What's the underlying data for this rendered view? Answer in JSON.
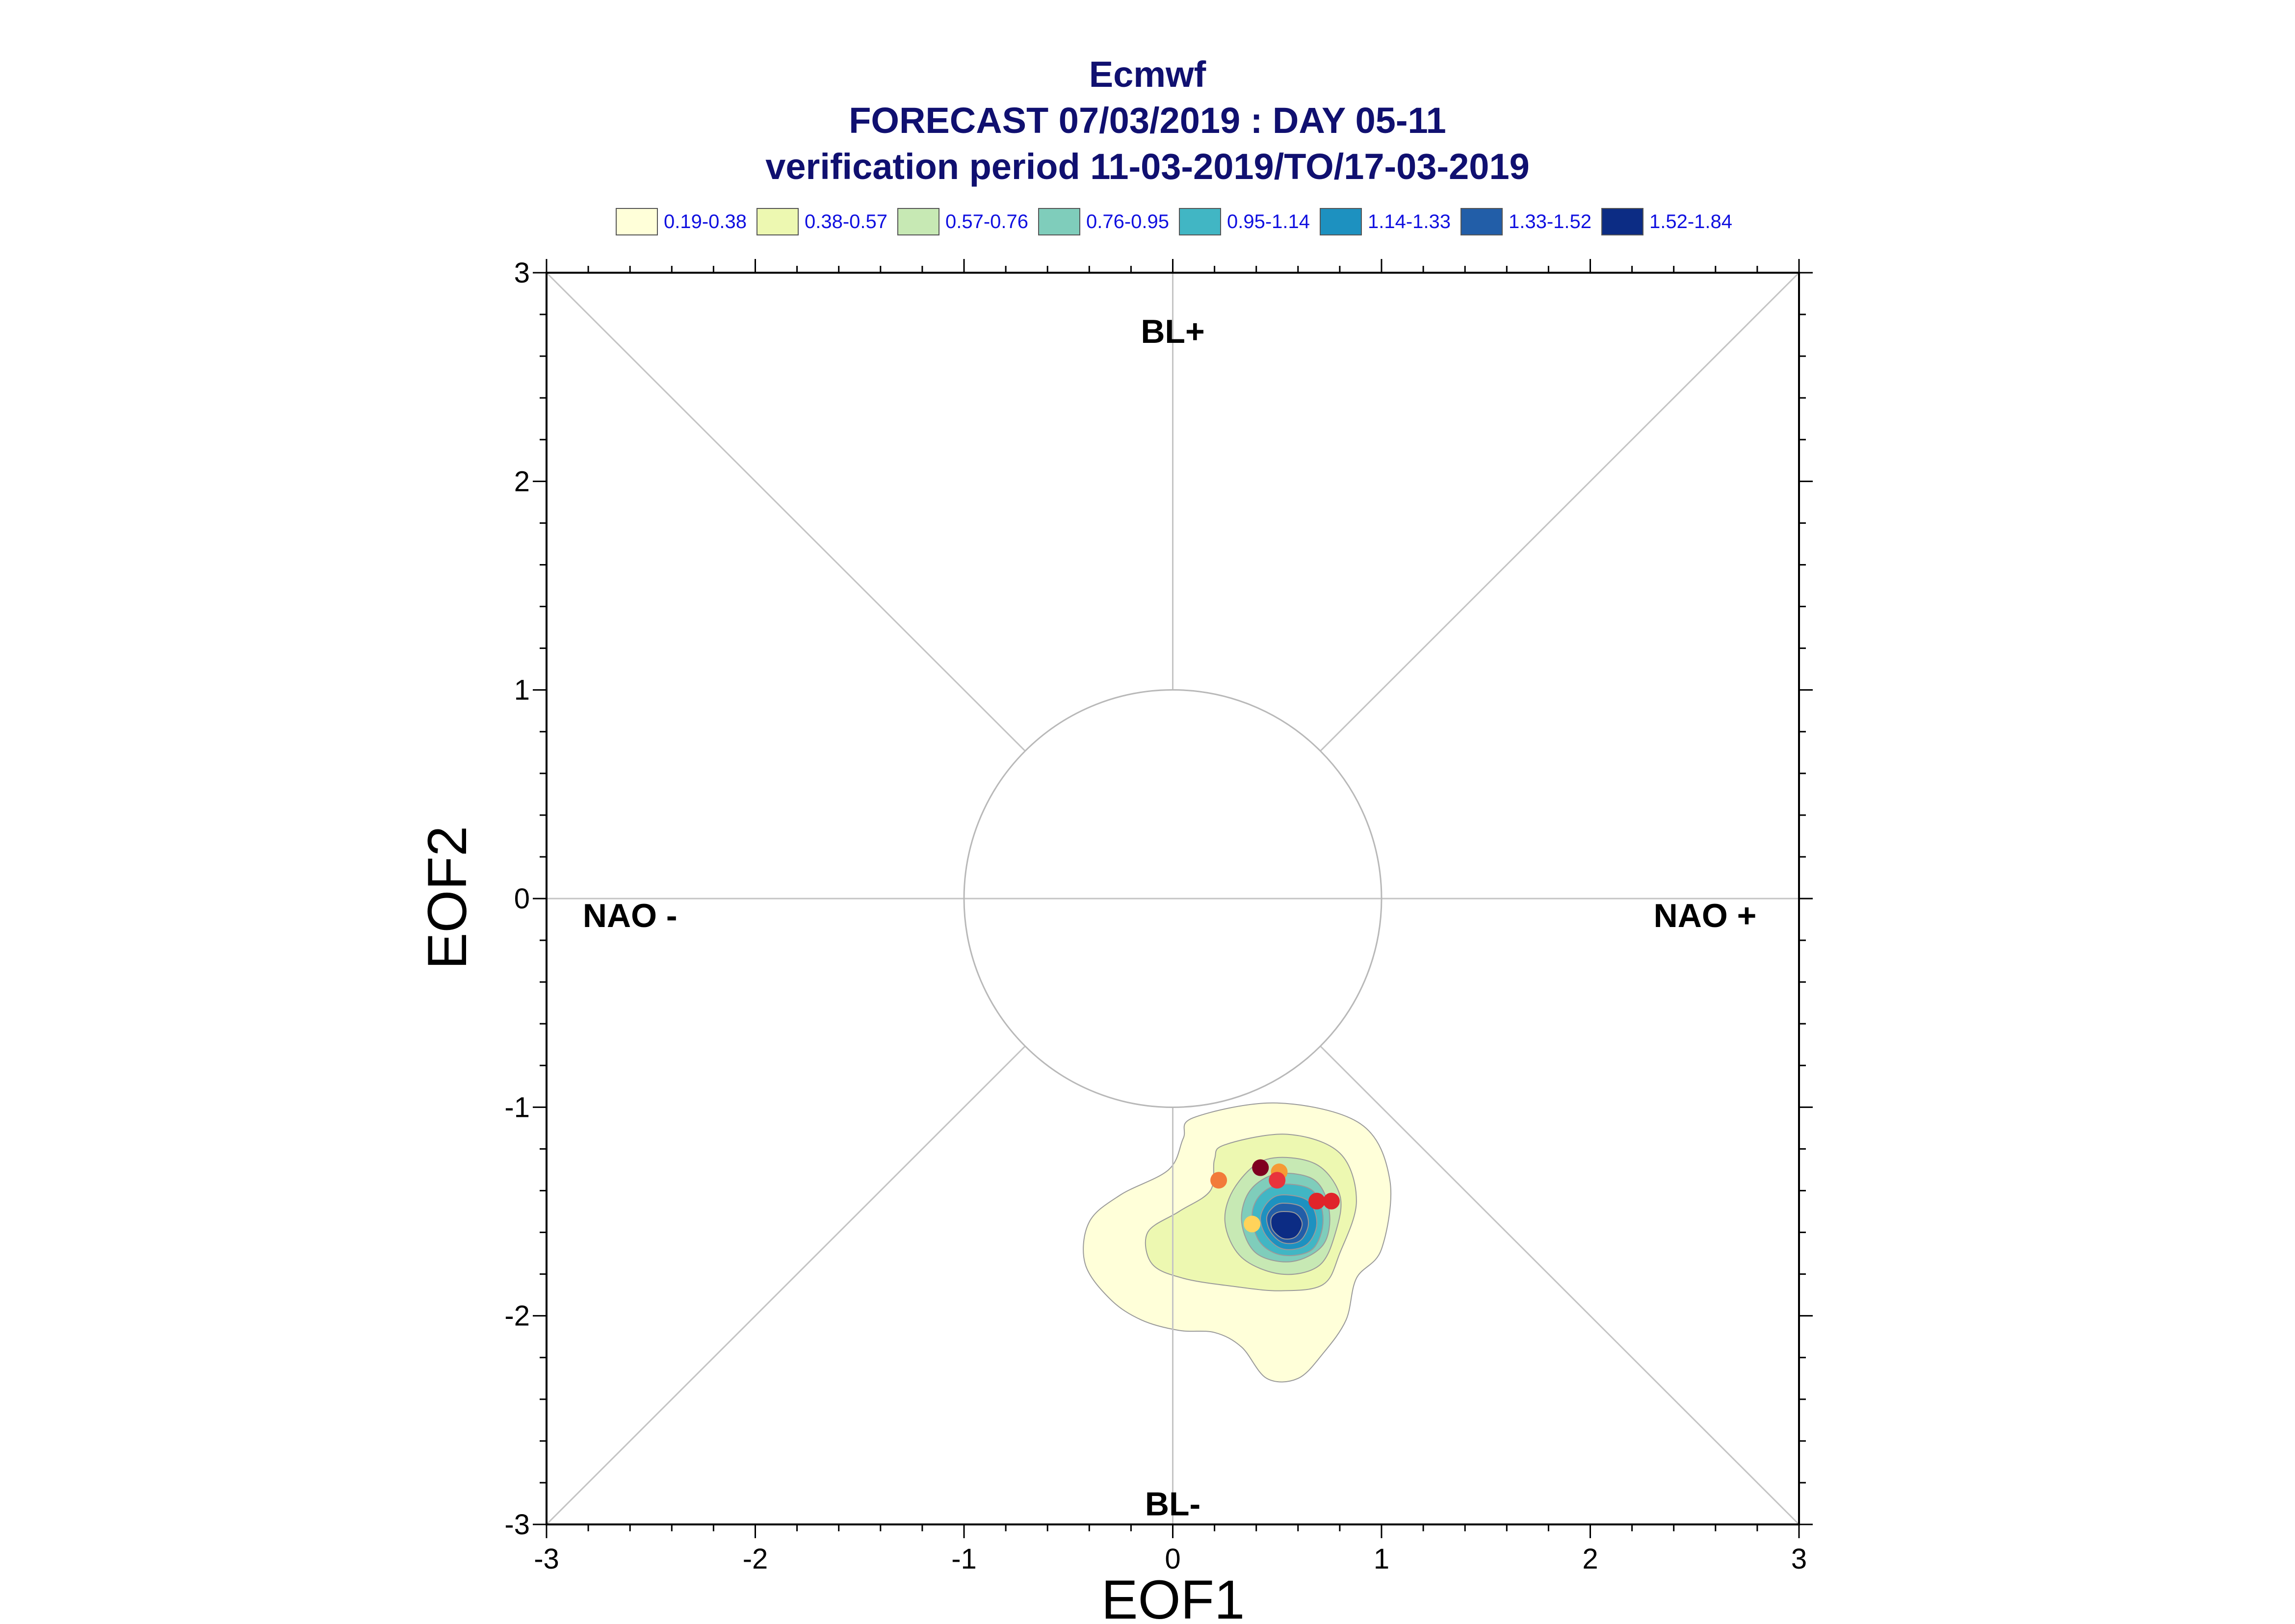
{
  "chart_data": {
    "type": "scatter",
    "title": "Ecmwf",
    "subtitle_lines": [
      "FORECAST 07/03/2019 : DAY 05-11",
      "verification period 11-03-2019/TO/17-03-2019"
    ],
    "xlabel": "EOF1",
    "ylabel": "EOF2",
    "xlim": [
      -3,
      3
    ],
    "ylim": [
      -3,
      3
    ],
    "x_ticks": [
      "-3",
      "-2",
      "-1",
      "0",
      "1",
      "2",
      "3"
    ],
    "y_ticks": [
      "-3",
      "-2",
      "-1",
      "0",
      "1",
      "2",
      "3"
    ],
    "grid": false,
    "circle_radius": 1,
    "regime_labels": [
      {
        "text": "BL+",
        "x": 0,
        "y": 2.72
      },
      {
        "text": "BL-",
        "x": 0,
        "y": -2.9
      },
      {
        "text": "NAO -",
        "x": -2.6,
        "y": -0.08
      },
      {
        "text": "NAO +",
        "x": 2.55,
        "y": -0.08
      }
    ],
    "legend": {
      "placement": "top",
      "entries": [
        {
          "label": "0.19-0.38",
          "color": "#ffffd9"
        },
        {
          "label": "0.38-0.57",
          "color": "#edf8b1"
        },
        {
          "label": "0.57-0.76",
          "color": "#c7e9b4"
        },
        {
          "label": "0.76-0.95",
          "color": "#7fcdbb"
        },
        {
          "label": "0.95-1.14",
          "color": "#41b6c4"
        },
        {
          "label": "1.14-1.33",
          "color": "#1d91c0"
        },
        {
          "label": "1.33-1.52",
          "color": "#225ea8"
        },
        {
          "label": "1.52-1.84",
          "color": "#0c2c84"
        }
      ]
    },
    "density_contours": [
      {
        "level": "0.19-0.38",
        "color": "#ffffd9",
        "points": [
          [
            0.1,
            -1.05
          ],
          [
            0.5,
            -0.98
          ],
          [
            0.9,
            -1.08
          ],
          [
            1.04,
            -1.35
          ],
          [
            1.0,
            -1.68
          ],
          [
            0.88,
            -1.82
          ],
          [
            0.83,
            -2.02
          ],
          [
            0.72,
            -2.18
          ],
          [
            0.6,
            -2.3
          ],
          [
            0.45,
            -2.3
          ],
          [
            0.33,
            -2.15
          ],
          [
            0.2,
            -2.08
          ],
          [
            0.03,
            -2.07
          ],
          [
            -0.15,
            -2.02
          ],
          [
            -0.3,
            -1.92
          ],
          [
            -0.42,
            -1.75
          ],
          [
            -0.4,
            -1.55
          ],
          [
            -0.25,
            -1.42
          ],
          [
            -0.02,
            -1.3
          ],
          [
            0.05,
            -1.15
          ]
        ]
      },
      {
        "level": "0.38-0.57",
        "color": "#edf8b1",
        "points": [
          [
            0.25,
            -1.18
          ],
          [
            0.55,
            -1.13
          ],
          [
            0.8,
            -1.22
          ],
          [
            0.88,
            -1.45
          ],
          [
            0.8,
            -1.7
          ],
          [
            0.72,
            -1.85
          ],
          [
            0.52,
            -1.88
          ],
          [
            0.3,
            -1.86
          ],
          [
            0.05,
            -1.82
          ],
          [
            -0.1,
            -1.75
          ],
          [
            -0.12,
            -1.6
          ],
          [
            0.03,
            -1.5
          ],
          [
            0.18,
            -1.4
          ],
          [
            0.2,
            -1.25
          ]
        ]
      },
      {
        "level": "0.57-0.76",
        "color": "#c7e9b4",
        "points": [
          [
            0.45,
            -1.25
          ],
          [
            0.68,
            -1.27
          ],
          [
            0.8,
            -1.42
          ],
          [
            0.78,
            -1.6
          ],
          [
            0.7,
            -1.76
          ],
          [
            0.52,
            -1.8
          ],
          [
            0.33,
            -1.72
          ],
          [
            0.25,
            -1.55
          ],
          [
            0.3,
            -1.38
          ]
        ]
      },
      {
        "level": "0.76-0.95",
        "color": "#7fcdbb",
        "points": [
          [
            0.5,
            -1.32
          ],
          [
            0.68,
            -1.35
          ],
          [
            0.75,
            -1.5
          ],
          [
            0.72,
            -1.66
          ],
          [
            0.57,
            -1.74
          ],
          [
            0.4,
            -1.7
          ],
          [
            0.33,
            -1.55
          ],
          [
            0.37,
            -1.4
          ]
        ]
      },
      {
        "level": "0.95-1.14",
        "color": "#41b6c4",
        "points": [
          [
            0.52,
            -1.37
          ],
          [
            0.67,
            -1.4
          ],
          [
            0.72,
            -1.54
          ],
          [
            0.67,
            -1.68
          ],
          [
            0.53,
            -1.71
          ],
          [
            0.42,
            -1.65
          ],
          [
            0.38,
            -1.52
          ],
          [
            0.42,
            -1.42
          ]
        ]
      },
      {
        "level": "1.14-1.33",
        "color": "#1d91c0",
        "points": [
          [
            0.53,
            -1.42
          ],
          [
            0.65,
            -1.45
          ],
          [
            0.69,
            -1.56
          ],
          [
            0.64,
            -1.66
          ],
          [
            0.53,
            -1.68
          ],
          [
            0.45,
            -1.62
          ],
          [
            0.42,
            -1.53
          ],
          [
            0.46,
            -1.45
          ]
        ]
      },
      {
        "level": "1.33-1.52",
        "color": "#225ea8",
        "points": [
          [
            0.53,
            -1.46
          ],
          [
            0.62,
            -1.48
          ],
          [
            0.65,
            -1.56
          ],
          [
            0.61,
            -1.64
          ],
          [
            0.53,
            -1.65
          ],
          [
            0.47,
            -1.6
          ],
          [
            0.45,
            -1.53
          ],
          [
            0.48,
            -1.48
          ]
        ]
      },
      {
        "level": "1.52-1.84",
        "color": "#0c2c84",
        "points": [
          [
            0.53,
            -1.5
          ],
          [
            0.59,
            -1.51
          ],
          [
            0.62,
            -1.56
          ],
          [
            0.59,
            -1.62
          ],
          [
            0.53,
            -1.63
          ],
          [
            0.48,
            -1.59
          ],
          [
            0.47,
            -1.54
          ],
          [
            0.49,
            -1.51
          ]
        ]
      }
    ],
    "series": [
      {
        "color": "#7f0020",
        "points": [
          [
            0.42,
            -1.29
          ]
        ]
      },
      {
        "color": "#f59a35",
        "points": [
          [
            0.51,
            -1.31
          ]
        ]
      },
      {
        "color": "#f27b3a",
        "points": [
          [
            0.22,
            -1.35
          ]
        ]
      },
      {
        "color": "#e8333c",
        "points": [
          [
            0.5,
            -1.35
          ]
        ]
      },
      {
        "color": "#e0242a",
        "points": [
          [
            0.69,
            -1.45
          ],
          [
            0.76,
            -1.45
          ]
        ]
      },
      {
        "color": "#ffd35a",
        "points": [
          [
            0.38,
            -1.56
          ]
        ]
      }
    ]
  }
}
